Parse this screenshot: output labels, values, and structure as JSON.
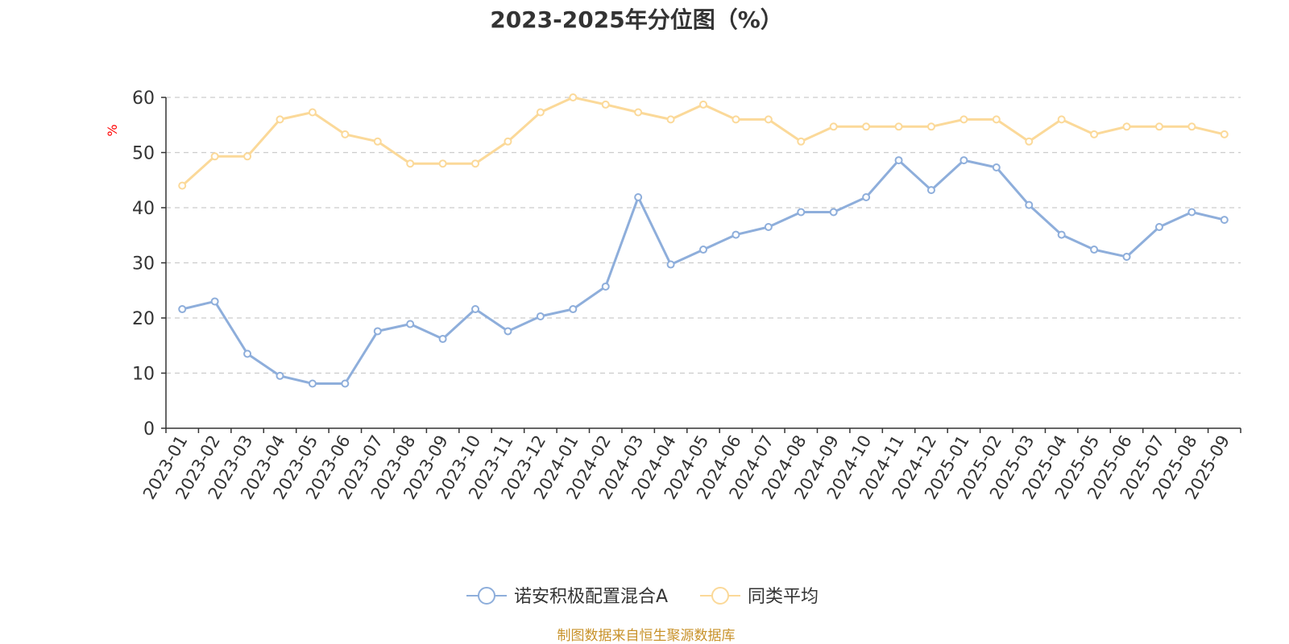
{
  "chart_data": {
    "type": "line",
    "title": "2023-2025年分位图（%）",
    "ylabel": "%",
    "ylim": [
      0,
      60
    ],
    "yticks": [
      "0",
      "10",
      "20",
      "30",
      "40",
      "50",
      "60"
    ],
    "grid": true,
    "legend_position": "bottom",
    "categories": [
      "2023-01",
      "2023-02",
      "2023-03",
      "2023-04",
      "2023-05",
      "2023-06",
      "2023-07",
      "2023-08",
      "2023-09",
      "2023-10",
      "2023-11",
      "2023-12",
      "2024-01",
      "2024-02",
      "2024-03",
      "2024-04",
      "2024-05",
      "2024-06",
      "2024-07",
      "2024-08",
      "2024-09",
      "2024-10",
      "2024-11",
      "2024-12",
      "2025-01",
      "2025-02",
      "2025-03",
      "2025-04",
      "2025-05",
      "2025-06",
      "2025-07",
      "2025-08",
      "2025-09"
    ],
    "series": [
      {
        "name": "诺安积极配置混合A",
        "color": "#8eaedb",
        "values": [
          21.6,
          23.0,
          13.5,
          9.5,
          8.1,
          8.1,
          17.6,
          18.9,
          16.2,
          21.6,
          17.6,
          20.3,
          21.6,
          25.7,
          41.9,
          29.7,
          32.4,
          35.1,
          36.5,
          39.2,
          39.2,
          41.9,
          48.6,
          43.2,
          48.6,
          47.3,
          40.5,
          35.1,
          32.4,
          31.1,
          36.5,
          39.2,
          37.8
        ]
      },
      {
        "name": "同类平均",
        "color": "#fbd999",
        "values": [
          44.0,
          49.3,
          49.3,
          56.0,
          57.3,
          53.3,
          52.0,
          48.0,
          48.0,
          48.0,
          52.0,
          57.3,
          60.0,
          58.7,
          57.3,
          56.0,
          58.7,
          56.0,
          56.0,
          52.0,
          54.7,
          54.7,
          54.7,
          54.7,
          56.0,
          56.0,
          52.0,
          56.0,
          53.3,
          54.7,
          54.7,
          54.7,
          53.3
        ]
      }
    ]
  },
  "colors": {
    "unit_label": "#ff0000",
    "source": "#c8922a",
    "axis": "#333333",
    "grid": "#cccccc"
  },
  "source_note": "制图数据来自恒生聚源数据库"
}
